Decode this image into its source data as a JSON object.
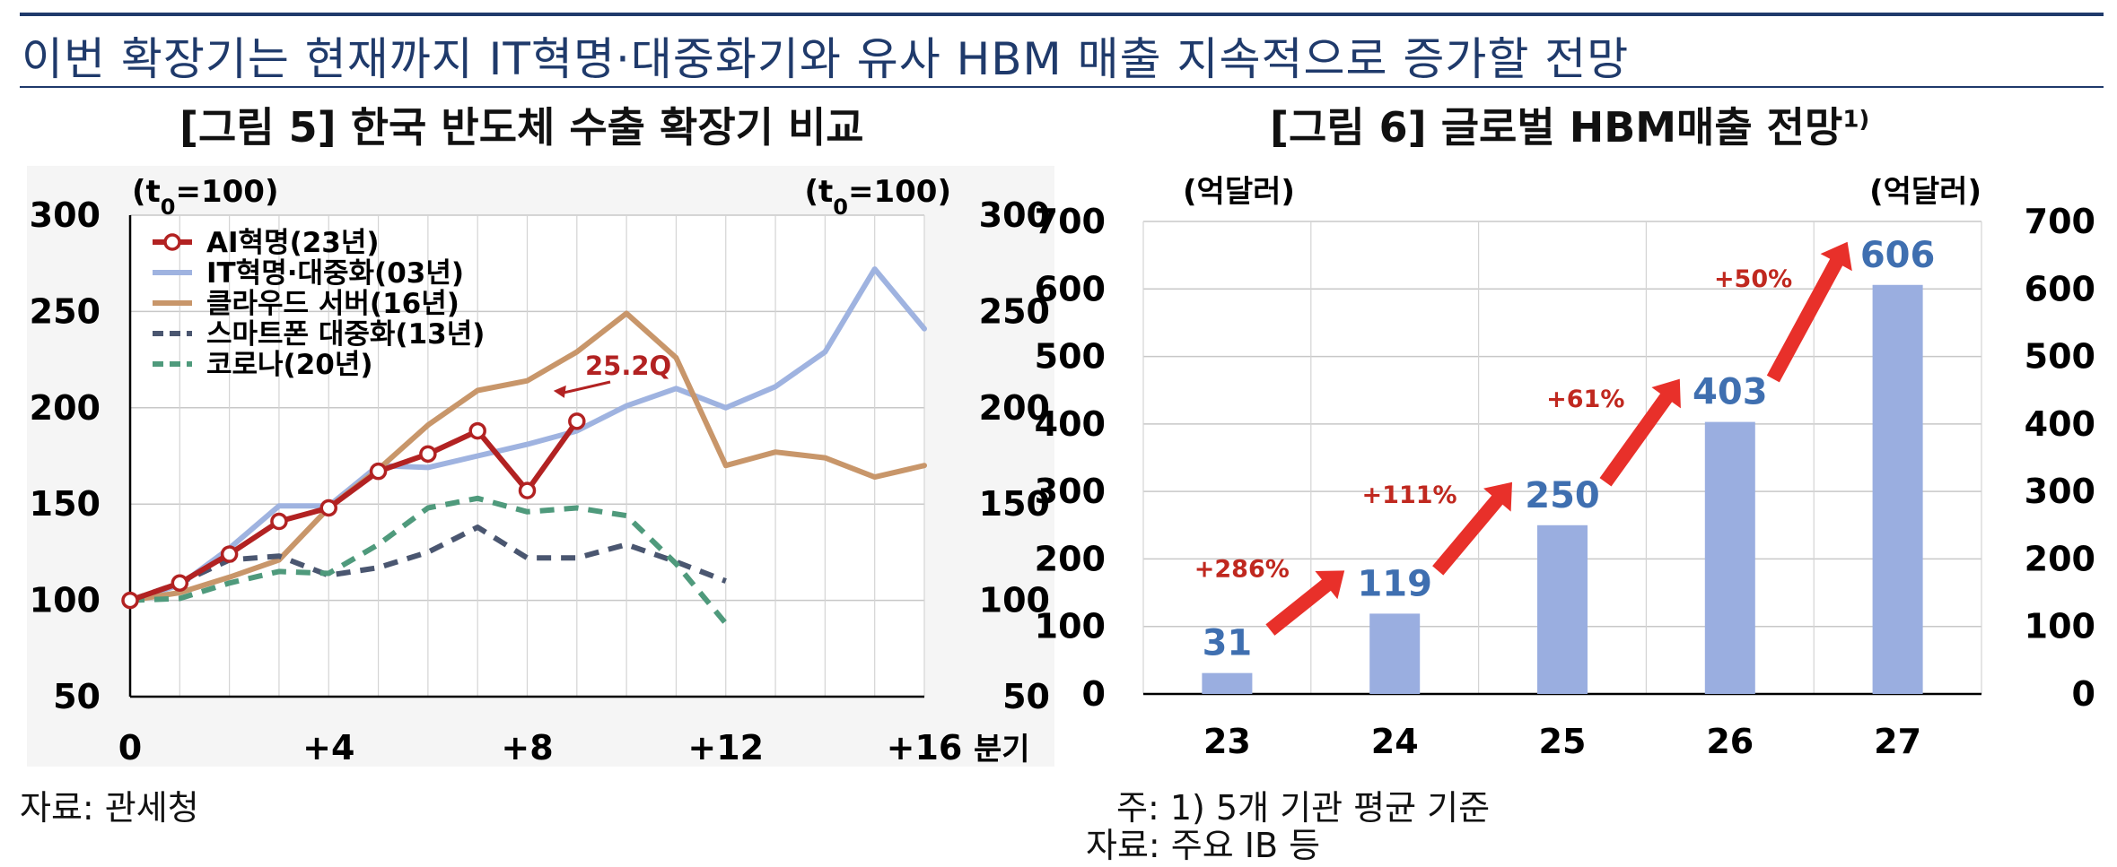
{
  "header": {
    "headline": "이번 확장기는 현재까지 IT혁명·대중화기와 유사  HBM 매출 지속적으로 증가할 전망"
  },
  "chart_data": [
    {
      "type": "line",
      "title": "[그림 5] 한국 반도체 수출 확장기 비교",
      "unit_left": "(t0=100)",
      "unit_right": "(t0=100)",
      "xlabel": "분기",
      "xlim": [
        0,
        16
      ],
      "xticks": [
        "0",
        "+4",
        "+8",
        "+12",
        "+16"
      ],
      "ylim": [
        50,
        300
      ],
      "yticks": [
        "50",
        "100",
        "150",
        "200",
        "250",
        "300"
      ],
      "grid": true,
      "legend_position": "top-left",
      "annotation": "25.2Q",
      "series": [
        {
          "name": "AI혁명(23년)",
          "color": "#b22222",
          "style": "solid-marker",
          "x": [
            0,
            1,
            2,
            3,
            4,
            5,
            6,
            7,
            8,
            9
          ],
          "values": [
            100,
            109,
            124,
            141,
            148,
            167,
            176,
            188,
            157,
            193
          ]
        },
        {
          "name": "IT혁명·대중화(03년)",
          "color": "#9fb3e0",
          "style": "solid",
          "x": [
            0,
            1,
            2,
            3,
            4,
            5,
            6,
            7,
            8,
            9,
            10,
            11,
            12,
            13,
            14,
            15,
            16
          ],
          "values": [
            100,
            108,
            127,
            149,
            149,
            170,
            169,
            175,
            181,
            188,
            201,
            210,
            200,
            211,
            229,
            272,
            241
          ]
        },
        {
          "name": "클라우드 서버(16년)",
          "color": "#c8966a",
          "style": "solid",
          "x": [
            0,
            1,
            2,
            3,
            4,
            5,
            6,
            7,
            8,
            9,
            10,
            11,
            12,
            13,
            14,
            15,
            16
          ],
          "values": [
            100,
            104,
            112,
            121,
            148,
            168,
            191,
            209,
            214,
            229,
            249,
            226,
            170,
            177,
            174,
            164,
            170
          ]
        },
        {
          "name": "스마트폰 대중화(13년)",
          "color": "#4a5670",
          "style": "dashed",
          "x": [
            0,
            1,
            2,
            3,
            4,
            5,
            6,
            7,
            8,
            9,
            10,
            11,
            12
          ],
          "values": [
            100,
            109,
            121,
            123,
            113,
            117,
            125,
            138,
            122,
            122,
            129,
            120,
            110
          ]
        },
        {
          "name": "코로나(20년)",
          "color": "#4f9a7c",
          "style": "dashed",
          "x": [
            0,
            1,
            2,
            3,
            4,
            5,
            6,
            7,
            8,
            9,
            10,
            11,
            12
          ],
          "values": [
            100,
            101,
            109,
            115,
            114,
            129,
            148,
            153,
            146,
            148,
            144,
            119,
            88
          ]
        }
      ]
    },
    {
      "type": "bar",
      "title": "[그림 6] 글로벌 HBM매출 전망",
      "title_sup": "1)",
      "unit_left": "(억달러)",
      "unit_right": "(억달러)",
      "categories": [
        "23",
        "24",
        "25",
        "26",
        "27"
      ],
      "values": [
        31,
        119,
        250,
        403,
        606
      ],
      "ylim": [
        0,
        700
      ],
      "yticks": [
        "0",
        "100",
        "200",
        "300",
        "400",
        "500",
        "600",
        "700"
      ],
      "grid": true,
      "bar_color": "#9aaee0",
      "label_color": "#3f6fb0",
      "growth_labels": [
        "+286%",
        "+111%",
        "+61%",
        "+50%"
      ],
      "arrow_color": "#e8302a"
    }
  ],
  "notes": {
    "left_source": "자료: 관세청",
    "right_note": "주: 1) 5개 기관 평균 기준",
    "right_source": "자료: 주요 IB 등"
  }
}
